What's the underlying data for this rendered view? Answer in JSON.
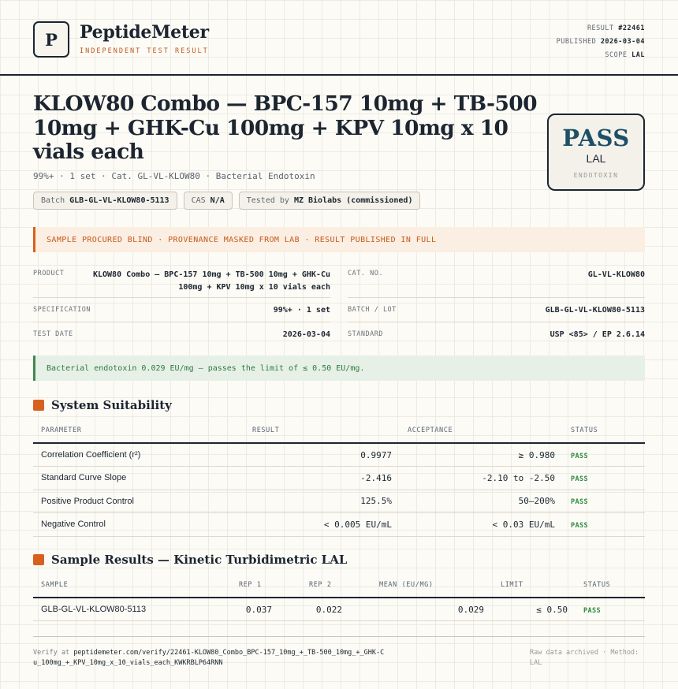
{
  "brand": {
    "logo_letter": "P",
    "name": "PeptideMeter",
    "tagline": "INDEPENDENT TEST RESULT"
  },
  "meta": {
    "result_label": "RESULT",
    "result_value": "#22461",
    "published_label": "PUBLISHED",
    "published_value": "2026-03-04",
    "scope_label": "SCOPE",
    "scope_value": "LAL"
  },
  "product": {
    "title": "KLOW80 Combo — BPC-157 10mg + TB-500 10mg + GHK-Cu 100mg + KPV 10mg x 10 vials each",
    "subline": "99%+ · 1 set · Cat. GL-VL-KLOW80 · Bacterial Endotoxin"
  },
  "chips": [
    {
      "label": "Batch",
      "value": "GLB-GL-VL-KLOW80-5113"
    },
    {
      "label": "CAS",
      "value": "N/A"
    },
    {
      "label": "Tested by",
      "value": "MZ Biolabs (commissioned)"
    }
  ],
  "stamp": {
    "word": "PASS",
    "method": "LAL",
    "test": "ENDOTOXIN"
  },
  "warning_banner": "SAMPLE PROCURED BLIND · PROVENANCE MASKED FROM LAB · RESULT PUBLISHED IN FULL",
  "info": {
    "product_label": "PRODUCT",
    "product_value": "KLOW80 Combo — BPC-157 10mg + TB-500 10mg + GHK-Cu 100mg + KPV 10mg x 10 vials each",
    "cat_label": "CAT. NO.",
    "cat_value": "GL-VL-KLOW80",
    "spec_label": "SPECIFICATION",
    "spec_value": "99%+ · 1 set",
    "batch_label": "BATCH / LOT",
    "batch_value": "GLB-GL-VL-KLOW80-5113",
    "date_label": "TEST DATE",
    "date_value": "2026-03-04",
    "standard_label": "STANDARD",
    "standard_value": "USP <85> / EP 2.6.14"
  },
  "ok_banner": "Bacterial endotoxin 0.029 EU/mg — passes the limit of ≤ 0.50 EU/mg.",
  "suitability": {
    "heading": "System Suitability",
    "headers": [
      "PARAMETER",
      "RESULT",
      "ACCEPTANCE",
      "STATUS"
    ],
    "rows": [
      {
        "param": "Correlation Coefficient (r²)",
        "result": "0.9977",
        "acceptance": "≥ 0.980",
        "status": "PASS"
      },
      {
        "param": "Standard Curve Slope",
        "result": "-2.416",
        "acceptance": "-2.10 to -2.50",
        "status": "PASS"
      },
      {
        "param": "Positive Product Control",
        "result": "125.5%",
        "acceptance": "50–200%",
        "status": "PASS"
      },
      {
        "param": "Negative Control",
        "result": "< 0.005 EU/mL",
        "acceptance": "< 0.03 EU/mL",
        "status": "PASS"
      }
    ]
  },
  "samples": {
    "heading": "Sample Results — Kinetic Turbidimetric LAL",
    "headers": [
      "SAMPLE",
      "REP 1",
      "REP 2",
      "MEAN (EU/MG)",
      "LIMIT",
      "STATUS"
    ],
    "rows": [
      {
        "sample": "GLB-GL-VL-KLOW80-5113",
        "rep1": "0.037",
        "rep2": "0.022",
        "mean": "0.029",
        "limit": "≤ 0.50",
        "status": "PASS"
      }
    ]
  },
  "footer": {
    "verify_prefix": "Verify at",
    "verify_url": "peptidemeter.com/verify/22461-KLOW80_Combo_BPC-157_10mg_+_TB-500_10mg_+_GHK-Cu_100mg_+_KPV_10mg_x_10_vials_each_KWKRBLP64RNN",
    "archived": "Raw data archived · Method: LAL"
  }
}
